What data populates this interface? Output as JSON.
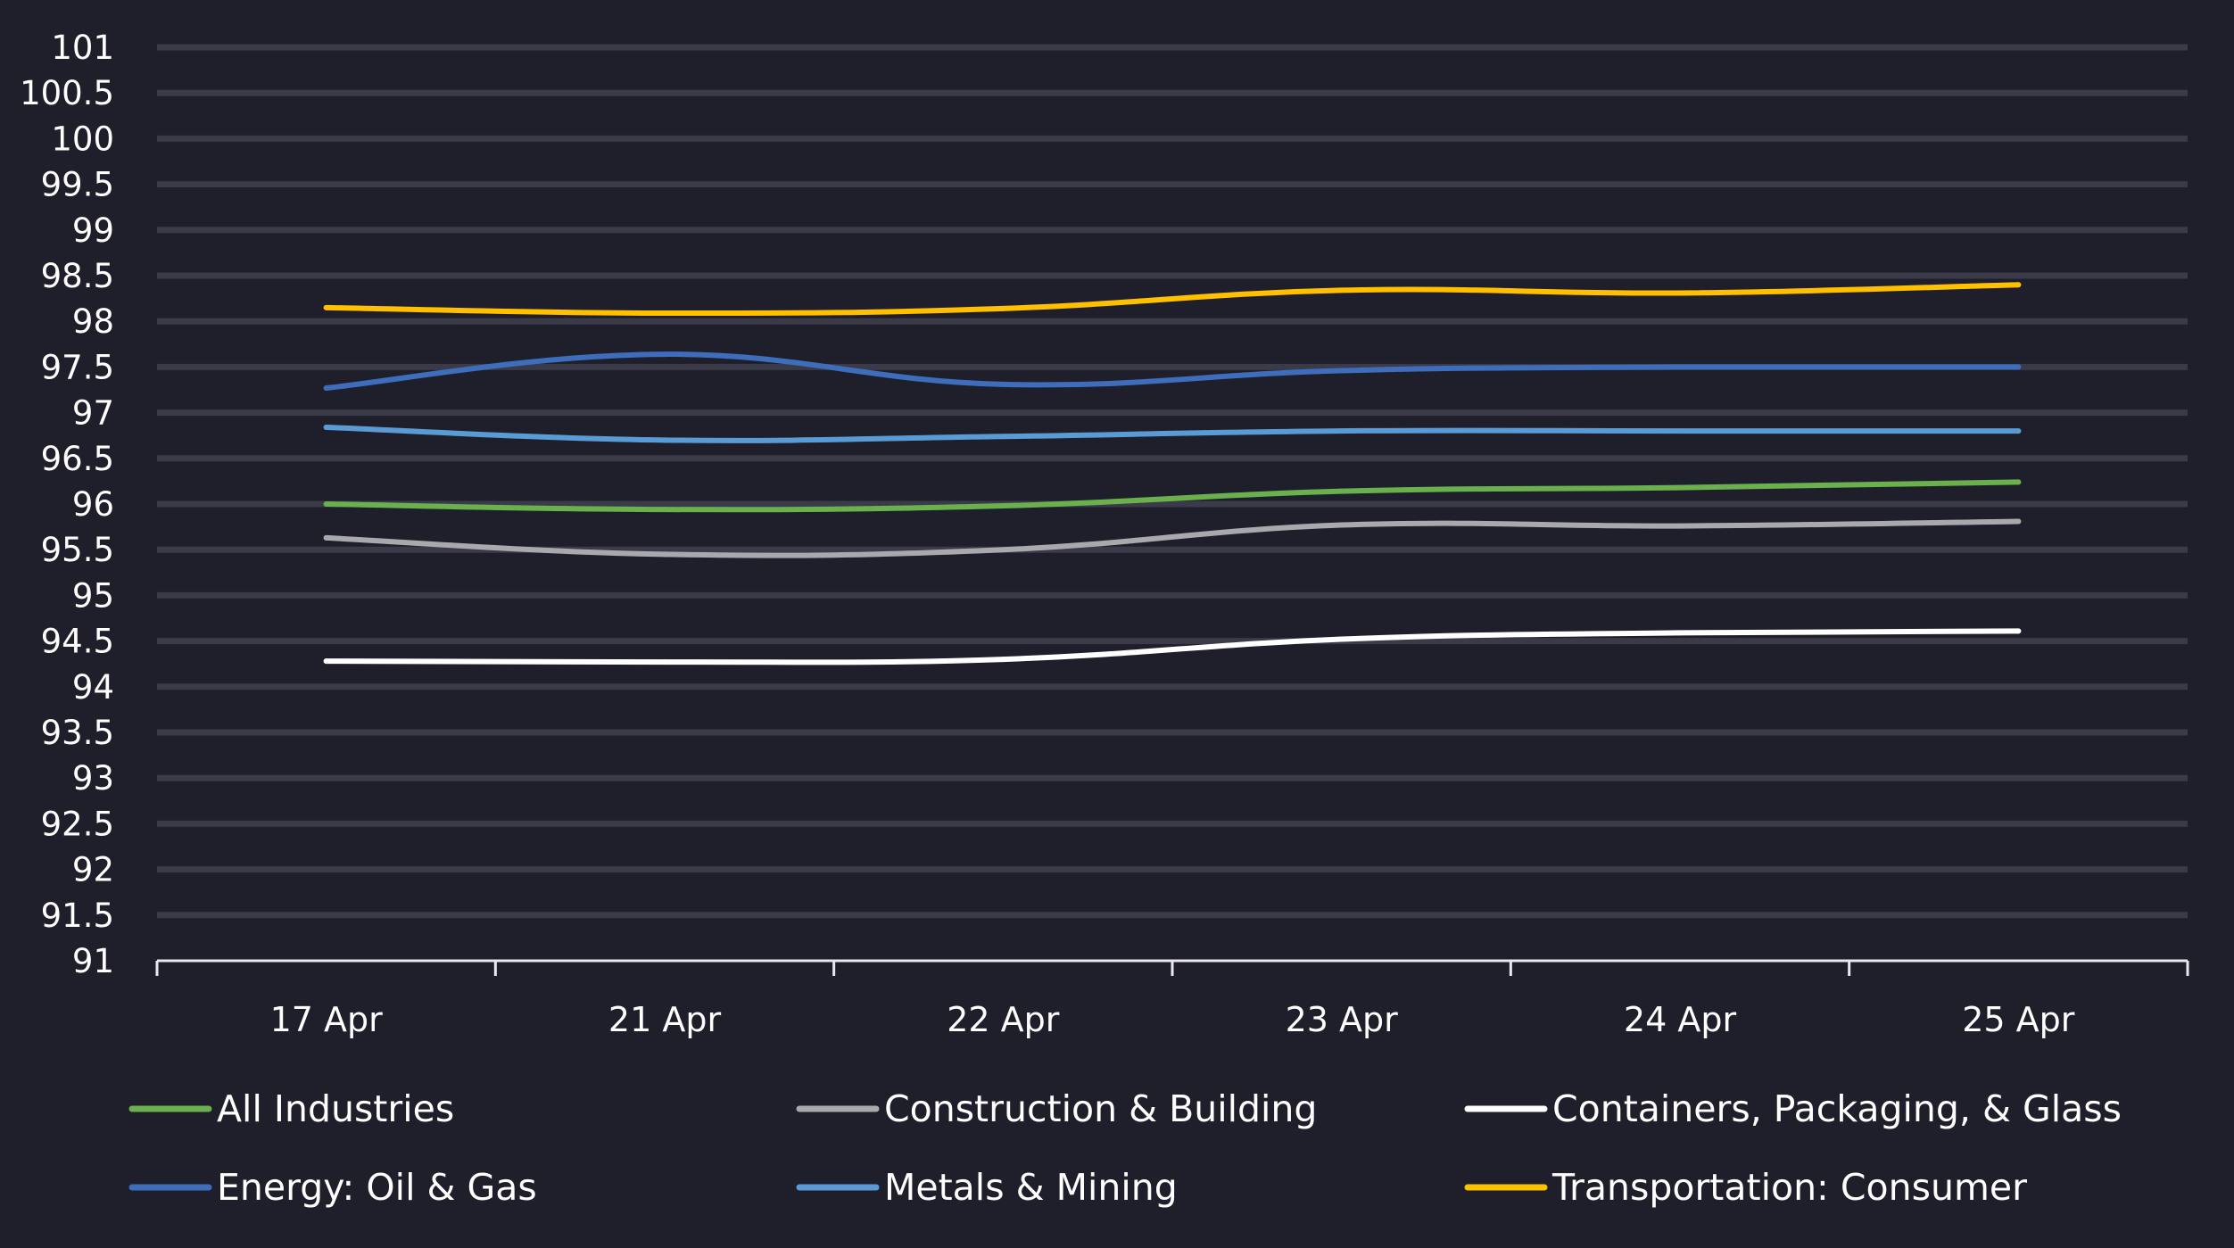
{
  "chart_data": {
    "type": "line",
    "title": "",
    "xlabel": "",
    "ylabel": "",
    "categories": [
      "17 Apr",
      "21 Apr",
      "22 Apr",
      "23 Apr",
      "24 Apr",
      "25 Apr"
    ],
    "ylim": [
      91,
      101
    ],
    "ytick_step": 0.5,
    "yticks": [
      "91",
      "91.5",
      "92",
      "92.5",
      "93",
      "93.5",
      "94",
      "94.5",
      "95",
      "95.5",
      "96",
      "96.5",
      "97",
      "97.5",
      "98",
      "98.5",
      "99",
      "99.5",
      "100",
      "100.5",
      "101"
    ],
    "grid": true,
    "legend_position": "bottom",
    "series": [
      {
        "name": "All Industries",
        "color": "#6ab04c",
        "values": [
          96.0,
          95.94,
          95.98,
          96.14,
          96.18,
          96.24
        ]
      },
      {
        "name": "Construction & Building",
        "color": "#a9a9ad",
        "values": [
          95.63,
          95.45,
          95.5,
          95.77,
          95.76,
          95.81
        ]
      },
      {
        "name": "Containers, Packaging, & Glass",
        "color": "#ffffff",
        "values": [
          94.28,
          94.27,
          94.3,
          94.52,
          94.59,
          94.61
        ]
      },
      {
        "name": "Energy: Oil & Gas",
        "color": "#3d6dbb",
        "values": [
          97.27,
          97.64,
          97.31,
          97.46,
          97.5,
          97.5
        ]
      },
      {
        "name": "Metals & Mining",
        "color": "#5b9bd5",
        "values": [
          96.84,
          96.7,
          96.74,
          96.8,
          96.8,
          96.8
        ]
      },
      {
        "name": "Transportation: Consumer",
        "color": "#ffc000",
        "values": [
          98.15,
          98.09,
          98.14,
          98.34,
          98.31,
          98.4
        ]
      }
    ]
  }
}
